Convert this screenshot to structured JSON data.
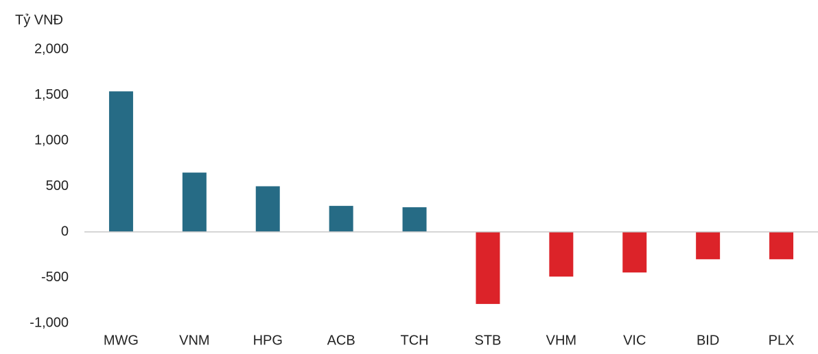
{
  "chart_data": {
    "type": "bar",
    "y_axis_label": "Tỷ VNĐ",
    "categories": [
      "MWG",
      "VNM",
      "HPG",
      "ACB",
      "TCH",
      "STB",
      "VHM",
      "VIC",
      "BID",
      "PLX"
    ],
    "values": [
      1540,
      650,
      500,
      285,
      270,
      -790,
      -490,
      -445,
      -300,
      -300
    ],
    "color_positive": "#266b85",
    "color_negative": "#dc2329",
    "ylim": [
      -1000,
      2000
    ],
    "yticks": [
      {
        "value": -1000,
        "label": "-1,000"
      },
      -500,
      0,
      500,
      {
        "value": 1000,
        "label": "1,000"
      },
      {
        "value": 1500,
        "label": "1,500"
      },
      {
        "value": 2000,
        "label": "2,000"
      }
    ],
    "grid": false
  }
}
